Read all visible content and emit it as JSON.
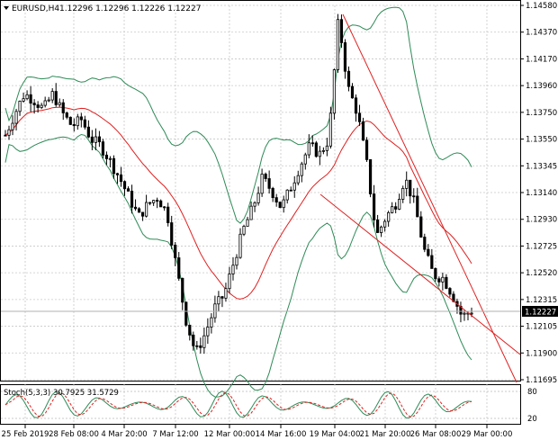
{
  "header": {
    "symbol": "EURUSD,H4",
    "ohlc": "1.12296 1.12296 1.12226 1.12227"
  },
  "current_price": "1.12227",
  "stoch": {
    "label": "Stoch(5,3,3) 30.7925 31.5729",
    "levels": [
      "80",
      "20"
    ]
  },
  "colors": {
    "price_bar": "#000000",
    "bollinger_band": "#2e8b57",
    "moving_average": "#e02020",
    "trend_line": "#e02020",
    "stoch_main": "#2e8b57",
    "stoch_signal": "#e02020",
    "grid": "#c8c8c8",
    "current_price_badge": "#000000"
  },
  "chart_data": {
    "type": "candlestick",
    "symbol": "EURUSD",
    "timeframe": "H4",
    "ylim": [
      1.11695,
      1.1458
    ],
    "y_ticks": [
      "1.14580",
      "1.14370",
      "1.14170",
      "1.13960",
      "1.13750",
      "1.13550",
      "1.13345",
      "1.13140",
      "1.12930",
      "1.12725",
      "1.12520",
      "1.12315",
      "1.12105",
      "1.11900",
      "1.11695"
    ],
    "x_ticks": [
      "25 Feb 2019",
      "28 Feb 08:00",
      "4 Mar 20:00",
      "7 Mar 12:00",
      "12 Mar 00:00",
      "14 Mar 16:00",
      "19 Mar 04:00",
      "21 Mar 20:00",
      "26 Mar 08:00",
      "29 Mar 00:00"
    ],
    "close_path": [
      1.1358,
      1.1375,
      1.139,
      1.1385,
      1.1378,
      1.139,
      1.1375,
      1.1365,
      1.137,
      1.1355,
      1.135,
      1.1338,
      1.1325,
      1.131,
      1.1295,
      1.1305,
      1.131,
      1.1298,
      1.1255,
      1.1215,
      1.119,
      1.1205,
      1.1225,
      1.1235,
      1.126,
      1.1285,
      1.1302,
      1.1325,
      1.1315,
      1.1302,
      1.1318,
      1.1335,
      1.135,
      1.1343,
      1.1355,
      1.1448,
      1.1395,
      1.1375,
      1.1335,
      1.128,
      1.1295,
      1.1305,
      1.1325,
      1.1305,
      1.127,
      1.125,
      1.1248,
      1.1235,
      1.1218,
      1.1223
    ]
  }
}
